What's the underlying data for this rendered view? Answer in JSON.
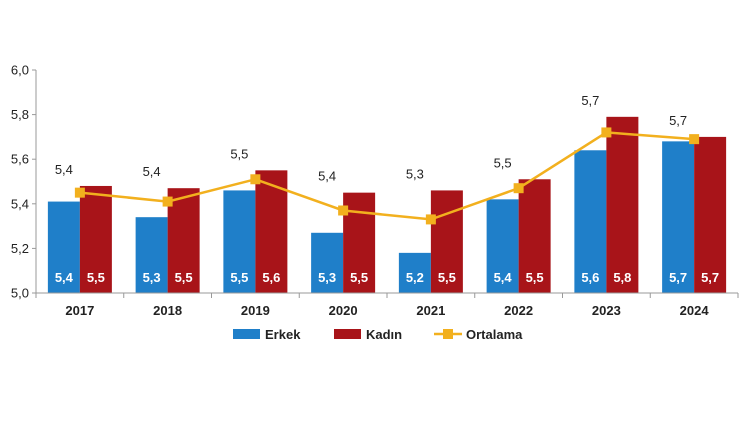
{
  "chart_data": {
    "type": "bar",
    "categories": [
      "2017",
      "2018",
      "2019",
      "2020",
      "2021",
      "2022",
      "2023",
      "2024"
    ],
    "series": [
      {
        "name": "Erkek",
        "type": "bar",
        "color": "#1f7fc9",
        "values": [
          5.41,
          5.34,
          5.46,
          5.27,
          5.18,
          5.42,
          5.64,
          5.68
        ],
        "labels": [
          "5,4",
          "5,3",
          "5,5",
          "5,3",
          "5,2",
          "5,4",
          "5,6",
          "5,7"
        ]
      },
      {
        "name": "Kadın",
        "type": "bar",
        "color": "#a81419",
        "values": [
          5.48,
          5.47,
          5.55,
          5.45,
          5.46,
          5.51,
          5.79,
          5.7
        ],
        "labels": [
          "5,5",
          "5,5",
          "5,6",
          "5,5",
          "5,5",
          "5,5",
          "5,8",
          "5,7"
        ]
      },
      {
        "name": "Ortalama",
        "type": "line",
        "color": "#f2b01e",
        "values": [
          5.45,
          5.41,
          5.51,
          5.37,
          5.33,
          5.47,
          5.72,
          5.69
        ],
        "labels": [
          "5,4",
          "5,4",
          "5,5",
          "5,4",
          "5,3",
          "5,5",
          "5,7",
          "5,7"
        ]
      }
    ],
    "yticks": [
      "5,0",
      "5,2",
      "5,4",
      "5,6",
      "5,8",
      "6,0"
    ],
    "ylim": [
      5.0,
      6.0
    ],
    "grid": false,
    "legend": "bottom"
  }
}
